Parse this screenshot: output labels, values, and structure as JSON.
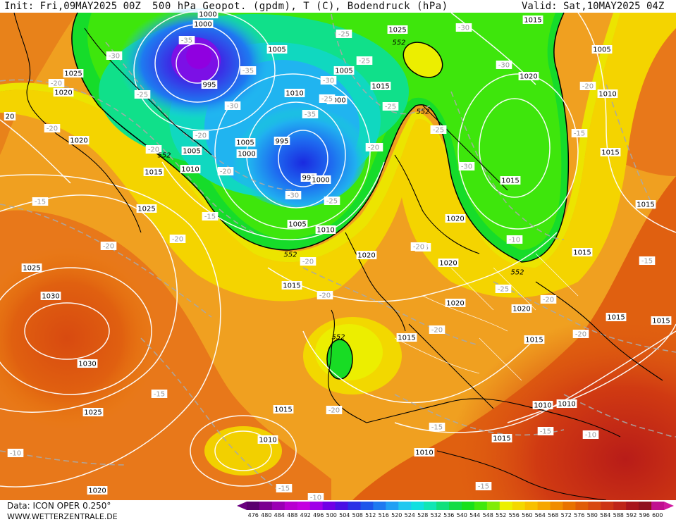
{
  "header": {
    "init": "Init: Fri,09MAY2025 00Z",
    "title": "500 hPa Geopot. (gpdm), T (C), Bodendruck (hPa)",
    "valid": "Valid: Sat,10MAY2025 04Z"
  },
  "footer": {
    "data_source": "Data: ICON OPER 0.250°",
    "website": "WWW.WETTERZENTRALE.DE"
  },
  "legend": {
    "values": [
      "476",
      "480",
      "484",
      "488",
      "492",
      "496",
      "500",
      "504",
      "508",
      "512",
      "516",
      "520",
      "524",
      "528",
      "532",
      "536",
      "540",
      "544",
      "548",
      "552",
      "556",
      "560",
      "564",
      "568",
      "572",
      "576",
      "580",
      "584",
      "588",
      "592",
      "596",
      "600"
    ],
    "colors": [
      "#5a006e",
      "#7a0090",
      "#9a00b4",
      "#b800d0",
      "#c400e0",
      "#a000e8",
      "#7000e6",
      "#4a10e4",
      "#2a30e6",
      "#1e56ea",
      "#1e7af0",
      "#20a0f4",
      "#20c8f0",
      "#10e0e0",
      "#10e6b4",
      "#10e07c",
      "#12dc46",
      "#18e01a",
      "#40e80c",
      "#80ec08",
      "#ecf000",
      "#f4d800",
      "#f8c000",
      "#f6a600",
      "#f08c00",
      "#e87200",
      "#e05c08",
      "#d84810",
      "#cc3414",
      "#be2418",
      "#a8141c",
      "#90101e",
      "#c01090"
    ],
    "left_arrow_color": "#6a0080",
    "right_arrow_color": "#d01aa0"
  },
  "map": {
    "pressure_labels": [
      {
        "text": "1000"
      },
      {
        "text": "1000"
      },
      {
        "text": "995"
      },
      {
        "text": "1005"
      },
      {
        "text": "1005"
      },
      {
        "text": "1010"
      },
      {
        "text": "1000"
      },
      {
        "text": "1005"
      },
      {
        "text": "1000"
      },
      {
        "text": "995"
      },
      {
        "text": "995"
      },
      {
        "text": "1000"
      },
      {
        "text": "1005"
      },
      {
        "text": "1010"
      },
      {
        "text": "1010"
      },
      {
        "text": "1005"
      },
      {
        "text": "1025"
      },
      {
        "text": "1015"
      },
      {
        "text": "1025"
      },
      {
        "text": "1020"
      },
      {
        "text": "1020"
      },
      {
        "text": "1015"
      },
      {
        "text": "1025"
      },
      {
        "text": "1025"
      },
      {
        "text": "1030"
      },
      {
        "text": "1030"
      },
      {
        "text": "1025"
      },
      {
        "text": "1020"
      },
      {
        "text": "1015"
      },
      {
        "text": "1010"
      },
      {
        "text": "1015"
      },
      {
        "text": "1015"
      },
      {
        "text": "1020"
      },
      {
        "text": "1020"
      },
      {
        "text": "1020"
      },
      {
        "text": "1020"
      },
      {
        "text": "1015"
      },
      {
        "text": "1015"
      },
      {
        "text": "1010"
      },
      {
        "text": "1010"
      },
      {
        "text": "1010"
      },
      {
        "text": "1015"
      },
      {
        "text": "1005"
      },
      {
        "text": "1020"
      },
      {
        "text": "1010"
      },
      {
        "text": "1015"
      },
      {
        "text": "1015"
      },
      {
        "text": "1015"
      },
      {
        "text": "1015"
      },
      {
        "text": "1015"
      },
      {
        "text": "1020"
      },
      {
        "text": "1010"
      },
      {
        "text": "1025"
      },
      {
        "text": "1015"
      },
      {
        "text": "20"
      }
    ],
    "temp_labels": [
      {
        "text": "-35"
      },
      {
        "text": "-35"
      },
      {
        "text": "-30"
      },
      {
        "text": "-30"
      },
      {
        "text": "-25"
      },
      {
        "text": "-20"
      },
      {
        "text": "-20"
      },
      {
        "text": "-20"
      },
      {
        "text": "-25"
      },
      {
        "text": "-35"
      },
      {
        "text": "-30"
      },
      {
        "text": "-30"
      },
      {
        "text": "-25"
      },
      {
        "text": "-25"
      },
      {
        "text": "-25"
      },
      {
        "text": "-30"
      },
      {
        "text": "-30"
      },
      {
        "text": "-25"
      },
      {
        "text": "-20"
      },
      {
        "text": "-20"
      },
      {
        "text": "-20"
      },
      {
        "text": "-20"
      },
      {
        "text": "-20"
      },
      {
        "text": "-15"
      },
      {
        "text": "-15"
      },
      {
        "text": "-20"
      },
      {
        "text": "-20"
      },
      {
        "text": "-20"
      },
      {
        "text": "-20"
      },
      {
        "text": "-25"
      },
      {
        "text": "-30"
      },
      {
        "text": "-25"
      },
      {
        "text": "-20"
      },
      {
        "text": "-20"
      },
      {
        "text": "-20"
      },
      {
        "text": "-20"
      },
      {
        "text": "-20"
      },
      {
        "text": "-15"
      },
      {
        "text": "-15"
      },
      {
        "text": "-15"
      },
      {
        "text": "-15"
      },
      {
        "text": "-10"
      },
      {
        "text": "-10"
      },
      {
        "text": "-15"
      },
      {
        "text": "-15"
      },
      {
        "text": "-10"
      },
      {
        "text": "-10"
      },
      {
        "text": "-15"
      },
      {
        "text": "-20"
      },
      {
        "text": "-25"
      },
      {
        "text": "-20"
      }
    ],
    "geopot_labels": [
      {
        "text": "552"
      },
      {
        "text": "552"
      },
      {
        "text": "552"
      },
      {
        "text": "552"
      },
      {
        "text": "552"
      },
      {
        "text": "552"
      }
    ]
  }
}
